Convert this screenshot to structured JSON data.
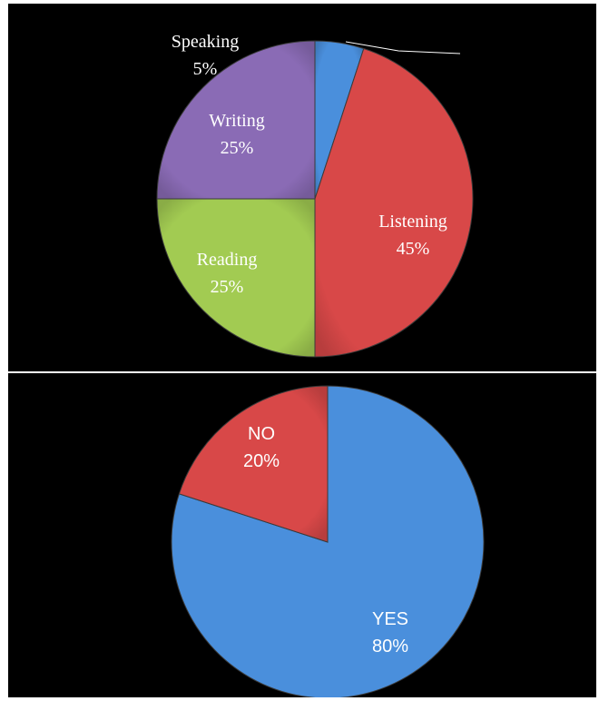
{
  "chart_data": [
    {
      "type": "pie",
      "title": "",
      "slices": [
        {
          "label": "Speaking",
          "value": 5,
          "value_label": "5%",
          "color": "#4a8fdc"
        },
        {
          "label": "Listening",
          "value": 45,
          "value_label": "45%",
          "color": "#d84848"
        },
        {
          "label": "Reading",
          "value": 25,
          "value_label": "25%",
          "color": "#a2cb52"
        },
        {
          "label": "Writing",
          "value": 25,
          "value_label": "25%",
          "color": "#8a6bb5"
        }
      ],
      "start": "12 o'clock",
      "direction": "clockwise",
      "legend": "none"
    },
    {
      "type": "pie",
      "title": "",
      "slices": [
        {
          "label": "YES",
          "value": 80,
          "value_label": "80%",
          "color": "#4a8fdc"
        },
        {
          "label": "NO",
          "value": 20,
          "value_label": "20%",
          "color": "#d84848"
        }
      ],
      "start": "12 o'clock",
      "direction": "clockwise",
      "legend": "none"
    }
  ]
}
